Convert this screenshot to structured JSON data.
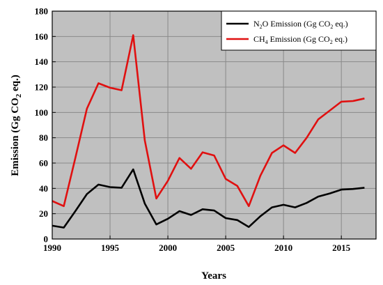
{
  "chart_data": {
    "type": "line",
    "xlabel": "Years",
    "ylabel": "Emission (Gg CO2 eq.)",
    "ylabel_parts": [
      "Emission (Gg CO",
      "2",
      " eq.)"
    ],
    "xlim": [
      1990,
      2018
    ],
    "ylim": [
      0,
      180
    ],
    "xticks": [
      1990,
      1995,
      2000,
      2005,
      2010,
      2015
    ],
    "yticks": [
      0,
      20,
      40,
      60,
      80,
      100,
      120,
      140,
      160,
      180
    ],
    "grid": true,
    "legend_position": "top-right",
    "plot_background": "#c0c0c0",
    "x": [
      1990,
      1991,
      1992,
      1993,
      1994,
      1995,
      1996,
      1997,
      1998,
      1999,
      2000,
      2001,
      2002,
      2003,
      2004,
      2005,
      2006,
      2007,
      2008,
      2009,
      2010,
      2011,
      2012,
      2013,
      2014,
      2015,
      2016,
      2017
    ],
    "series": [
      {
        "name": "N2O Emission (Gg CO2 eq.)",
        "legend_parts": [
          "N",
          "2",
          "O Emission (Gg CO",
          "2",
          " eq.)"
        ],
        "color": "#000000",
        "values": [
          10.5,
          9,
          22,
          35.5,
          43,
          41,
          40.5,
          55,
          28,
          11.5,
          16,
          22,
          19,
          23.5,
          22.5,
          16.5,
          15,
          9.5,
          18,
          25,
          27,
          25,
          28.5,
          33.5,
          36,
          39,
          39.5,
          40.5
        ]
      },
      {
        "name": "CH4 Emission (Gg CO2 eq.)",
        "legend_parts": [
          "CH",
          "4",
          " Emission (Gg CO",
          "2",
          " eq.)"
        ],
        "color": "#e01010",
        "values": [
          30,
          26,
          64,
          103,
          123,
          119.5,
          117.5,
          161,
          78,
          32,
          46,
          64,
          55.5,
          68.5,
          66,
          47.5,
          42,
          26,
          50,
          68,
          74,
          68,
          80,
          94.5,
          101.5,
          108.5,
          109,
          111
        ]
      }
    ]
  }
}
